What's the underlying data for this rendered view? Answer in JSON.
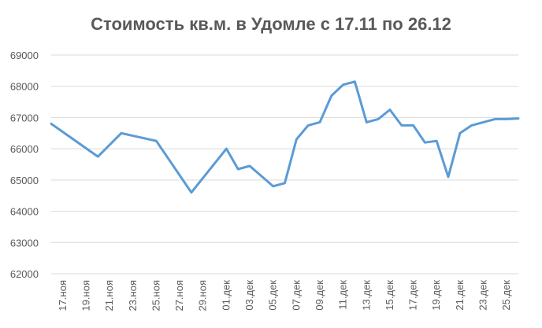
{
  "chart_data": {
    "type": "line",
    "title": "Стоимость кв.м. в Удомле с 17.11 по 26.12",
    "xlabel": "",
    "ylabel": "",
    "ylim": [
      62000,
      69000
    ],
    "yticks": [
      62000,
      63000,
      64000,
      65000,
      66000,
      67000,
      68000,
      69000
    ],
    "grid": true,
    "xticks": [
      "17.ноя",
      "19.ноя",
      "21.ноя",
      "23.ноя",
      "25.ноя",
      "27.ноя",
      "29.ноя",
      "01.дек",
      "03.дек",
      "05.дек",
      "07.дек",
      "09.дек",
      "11.дек",
      "13.дек",
      "15.дек",
      "17.дек",
      "19.дек",
      "21.дек",
      "23.дек",
      "25.дек"
    ],
    "x": [
      0,
      4,
      6,
      9,
      12,
      15,
      16,
      17,
      19,
      20,
      21,
      22,
      23,
      24,
      25,
      26,
      27,
      28,
      29,
      30,
      31,
      32,
      33,
      34,
      35,
      36,
      37,
      38,
      39,
      40
    ],
    "values": [
      66800,
      65750,
      66500,
      66250,
      64600,
      66000,
      65350,
      65450,
      64800,
      64900,
      66300,
      66750,
      66850,
      67700,
      68050,
      68150,
      66850,
      66950,
      67250,
      66750,
      66750,
      66200,
      66250,
      65100,
      66500,
      66750,
      66850,
      66950,
      66950,
      66970
    ]
  }
}
